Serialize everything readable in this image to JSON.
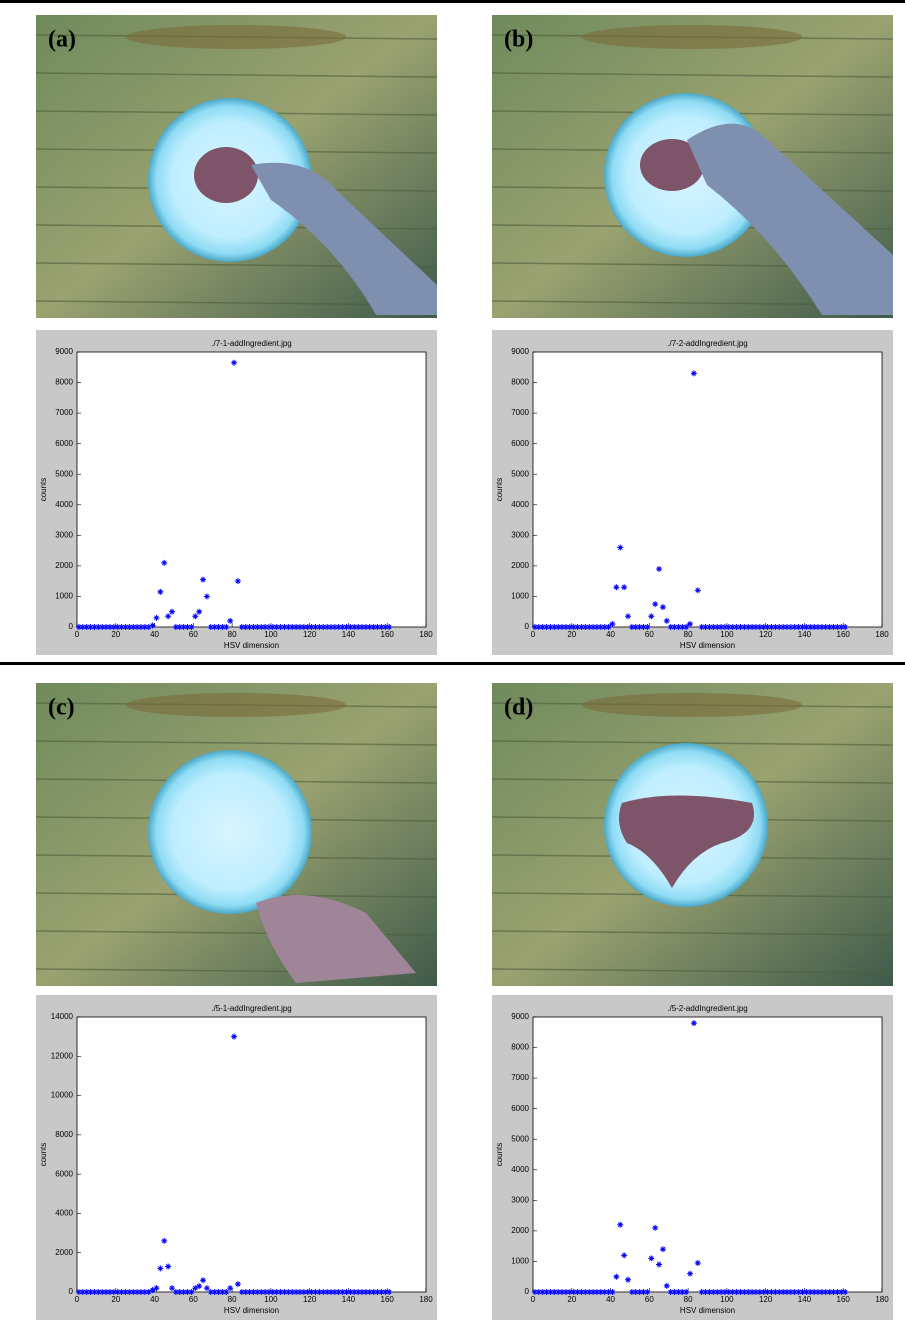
{
  "panel_labels": [
    "(a)",
    "(b)",
    "(c)",
    "(d)"
  ],
  "chart_data": [
    {
      "type": "scatter",
      "title": "./7-1-addIngredient.jpg",
      "x_label": "HSV dimension",
      "y_label": "counts",
      "color": "#0000ff",
      "xlim": [
        0,
        180
      ],
      "xticks": [
        0,
        20,
        40,
        60,
        80,
        100,
        120,
        140,
        160,
        180
      ],
      "ylim": [
        0,
        9000
      ],
      "yticks": [
        0,
        1000,
        2000,
        3000,
        4000,
        5000,
        6000,
        7000,
        8000,
        9000
      ],
      "x": [
        1,
        3,
        5,
        7,
        9,
        11,
        13,
        15,
        17,
        19,
        21,
        23,
        25,
        27,
        29,
        31,
        33,
        35,
        37,
        39,
        41,
        43,
        45,
        47,
        49,
        51,
        53,
        55,
        57,
        59,
        61,
        63,
        65,
        67,
        69,
        71,
        73,
        75,
        77,
        79,
        81,
        83,
        85,
        87,
        89,
        91,
        93,
        95,
        97,
        99,
        101,
        103,
        105,
        107,
        109,
        111,
        113,
        115,
        117,
        119,
        121,
        123,
        125,
        127,
        129,
        131,
        133,
        135,
        137,
        139,
        141,
        143,
        145,
        147,
        149,
        151,
        153,
        155,
        157,
        159,
        161
      ],
      "values": [
        0,
        0,
        0,
        0,
        0,
        0,
        0,
        0,
        0,
        0,
        0,
        0,
        0,
        0,
        0,
        0,
        0,
        0,
        0,
        50,
        300,
        1150,
        2100,
        350,
        500,
        0,
        0,
        0,
        0,
        0,
        350,
        500,
        1550,
        1000,
        0,
        0,
        0,
        0,
        0,
        200,
        8650,
        1500,
        0,
        0,
        0,
        0,
        0,
        0,
        0,
        0,
        0,
        0,
        0,
        0,
        0,
        0,
        0,
        0,
        0,
        0,
        0,
        0,
        0,
        0,
        0,
        0,
        0,
        0,
        0,
        0,
        0,
        0,
        0,
        0,
        0,
        0,
        0,
        0,
        0,
        0,
        0
      ]
    },
    {
      "type": "scatter",
      "title": "./7-2-addIngredient.jpg",
      "x_label": "HSV dimension",
      "y_label": "counts",
      "color": "#0000ff",
      "xlim": [
        0,
        180
      ],
      "xticks": [
        0,
        20,
        40,
        60,
        80,
        100,
        120,
        140,
        160,
        180
      ],
      "ylim": [
        0,
        9000
      ],
      "yticks": [
        0,
        1000,
        2000,
        3000,
        4000,
        5000,
        6000,
        7000,
        8000,
        9000
      ],
      "x": [
        1,
        3,
        5,
        7,
        9,
        11,
        13,
        15,
        17,
        19,
        21,
        23,
        25,
        27,
        29,
        31,
        33,
        35,
        37,
        39,
        41,
        43,
        45,
        47,
        49,
        51,
        53,
        55,
        57,
        59,
        61,
        63,
        65,
        67,
        69,
        71,
        73,
        75,
        77,
        79,
        81,
        83,
        85,
        87,
        89,
        91,
        93,
        95,
        97,
        99,
        101,
        103,
        105,
        107,
        109,
        111,
        113,
        115,
        117,
        119,
        121,
        123,
        125,
        127,
        129,
        131,
        133,
        135,
        137,
        139,
        141,
        143,
        145,
        147,
        149,
        151,
        153,
        155,
        157,
        159,
        161
      ],
      "values": [
        0,
        0,
        0,
        0,
        0,
        0,
        0,
        0,
        0,
        0,
        0,
        0,
        0,
        0,
        0,
        0,
        0,
        0,
        0,
        0,
        100,
        1300,
        2600,
        1300,
        350,
        0,
        0,
        0,
        0,
        0,
        350,
        750,
        1900,
        650,
        200,
        0,
        0,
        0,
        0,
        0,
        100,
        8300,
        1200,
        0,
        0,
        0,
        0,
        0,
        0,
        0,
        0,
        0,
        0,
        0,
        0,
        0,
        0,
        0,
        0,
        0,
        0,
        0,
        0,
        0,
        0,
        0,
        0,
        0,
        0,
        0,
        0,
        0,
        0,
        0,
        0,
        0,
        0,
        0,
        0,
        0,
        0
      ]
    },
    {
      "type": "scatter",
      "title": "./5-1-addIngredient.jpg",
      "x_label": "HSV dimension",
      "y_label": "counts",
      "color": "#0000ff",
      "xlim": [
        0,
        180
      ],
      "xticks": [
        0,
        20,
        40,
        60,
        80,
        100,
        120,
        140,
        160,
        180
      ],
      "ylim": [
        0,
        14000
      ],
      "yticks": [
        0,
        2000,
        4000,
        6000,
        8000,
        10000,
        12000,
        14000
      ],
      "x": [
        1,
        3,
        5,
        7,
        9,
        11,
        13,
        15,
        17,
        19,
        21,
        23,
        25,
        27,
        29,
        31,
        33,
        35,
        37,
        39,
        41,
        43,
        45,
        47,
        49,
        51,
        53,
        55,
        57,
        59,
        61,
        63,
        65,
        67,
        69,
        71,
        73,
        75,
        77,
        79,
        81,
        83,
        85,
        87,
        89,
        91,
        93,
        95,
        97,
        99,
        101,
        103,
        105,
        107,
        109,
        111,
        113,
        115,
        117,
        119,
        121,
        123,
        125,
        127,
        129,
        131,
        133,
        135,
        137,
        139,
        141,
        143,
        145,
        147,
        149,
        151,
        153,
        155,
        157,
        159,
        161
      ],
      "values": [
        0,
        0,
        0,
        0,
        0,
        0,
        0,
        0,
        0,
        0,
        0,
        0,
        0,
        0,
        0,
        0,
        0,
        0,
        0,
        100,
        200,
        1200,
        2600,
        1300,
        200,
        0,
        0,
        0,
        0,
        0,
        200,
        300,
        600,
        200,
        0,
        0,
        0,
        0,
        0,
        200,
        13000,
        400,
        0,
        0,
        0,
        0,
        0,
        0,
        0,
        0,
        0,
        0,
        0,
        0,
        0,
        0,
        0,
        0,
        0,
        0,
        0,
        0,
        0,
        0,
        0,
        0,
        0,
        0,
        0,
        0,
        0,
        0,
        0,
        0,
        0,
        0,
        0,
        0,
        0,
        0,
        0
      ]
    },
    {
      "type": "scatter",
      "title": "./5-2-addIngredient.jpg",
      "x_label": "HSV dimension",
      "y_label": "counts",
      "color": "#0000ff",
      "xlim": [
        0,
        180
      ],
      "xticks": [
        0,
        20,
        40,
        60,
        80,
        100,
        120,
        140,
        160,
        180
      ],
      "ylim": [
        0,
        9000
      ],
      "yticks": [
        0,
        1000,
        2000,
        3000,
        4000,
        5000,
        6000,
        7000,
        8000,
        9000
      ],
      "x": [
        1,
        3,
        5,
        7,
        9,
        11,
        13,
        15,
        17,
        19,
        21,
        23,
        25,
        27,
        29,
        31,
        33,
        35,
        37,
        39,
        41,
        43,
        45,
        47,
        49,
        51,
        53,
        55,
        57,
        59,
        61,
        63,
        65,
        67,
        69,
        71,
        73,
        75,
        77,
        79,
        81,
        83,
        85,
        87,
        89,
        91,
        93,
        95,
        97,
        99,
        101,
        103,
        105,
        107,
        109,
        111,
        113,
        115,
        117,
        119,
        121,
        123,
        125,
        127,
        129,
        131,
        133,
        135,
        137,
        139,
        141,
        143,
        145,
        147,
        149,
        151,
        153,
        155,
        157,
        159,
        161
      ],
      "values": [
        0,
        0,
        0,
        0,
        0,
        0,
        0,
        0,
        0,
        0,
        0,
        0,
        0,
        0,
        0,
        0,
        0,
        0,
        0,
        0,
        0,
        500,
        2200,
        1200,
        400,
        0,
        0,
        0,
        0,
        0,
        1100,
        2100,
        900,
        1400,
        200,
        0,
        0,
        0,
        0,
        0,
        600,
        8800,
        950,
        0,
        0,
        0,
        0,
        0,
        0,
        0,
        0,
        0,
        0,
        0,
        0,
        0,
        0,
        0,
        0,
        0,
        0,
        0,
        0,
        0,
        0,
        0,
        0,
        0,
        0,
        0,
        0,
        0,
        0,
        0,
        0,
        0,
        0,
        0,
        0,
        0,
        0
      ]
    }
  ]
}
